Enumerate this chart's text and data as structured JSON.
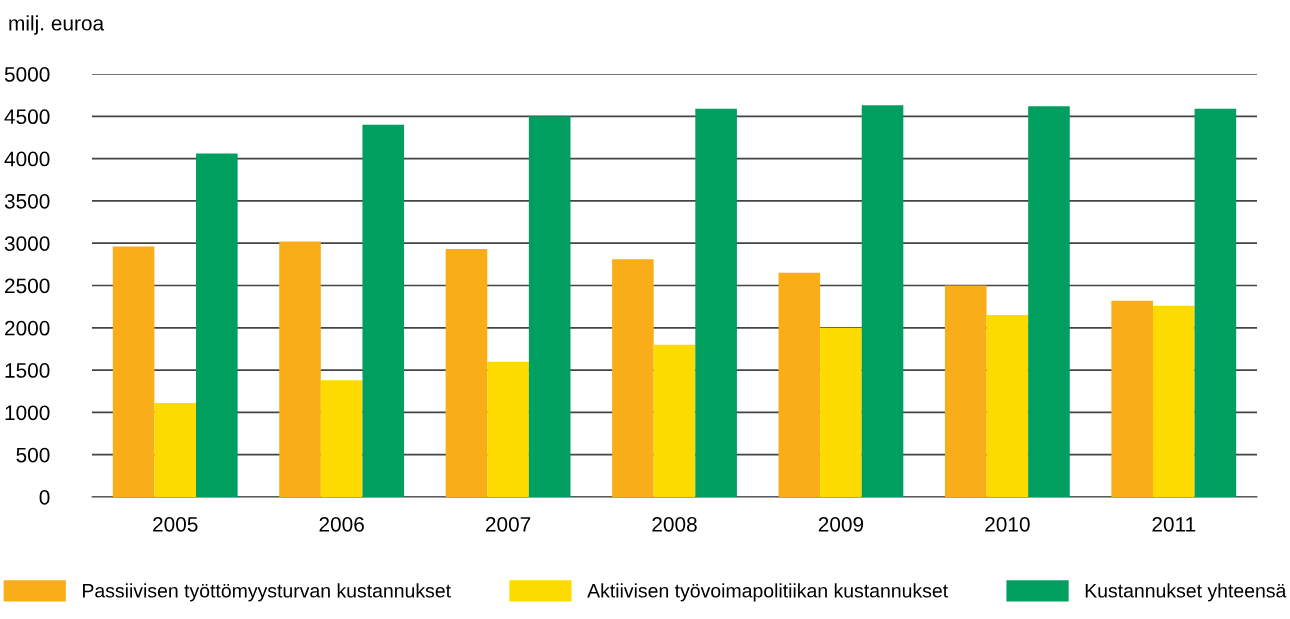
{
  "chart_data": {
    "type": "bar",
    "ylabel": "milj. euroa",
    "categories": [
      "2005",
      "2006",
      "2007",
      "2008",
      "2009",
      "2010",
      "2011"
    ],
    "series": [
      {
        "name": "Passiivisen työttömyysturvan kustannukset",
        "color": "#f9ae19",
        "values": [
          2960,
          3020,
          2930,
          2810,
          2650,
          2500,
          2320
        ]
      },
      {
        "name": "Aktiivisen työvoimapolitiikan kustannukset",
        "color": "#fddb00",
        "values": [
          1110,
          1380,
          1600,
          1800,
          2000,
          2150,
          2260
        ]
      },
      {
        "name": "Kustannukset yhteensä",
        "color": "#009f5f",
        "values": [
          4060,
          4400,
          4500,
          4590,
          4630,
          4620,
          4590
        ]
      }
    ],
    "ylim": [
      0,
      5000
    ],
    "yticks": [
      0,
      500,
      1000,
      1500,
      2000,
      2500,
      3000,
      3500,
      4000,
      4500,
      5000
    ],
    "grid": "y",
    "legend": "bottom"
  }
}
